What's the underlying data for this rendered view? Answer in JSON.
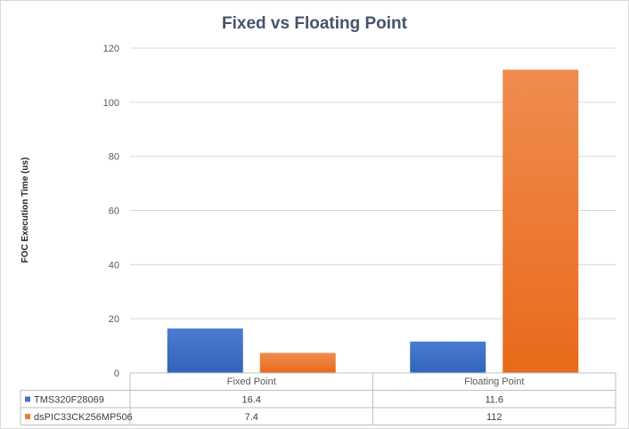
{
  "chart_data": {
    "type": "bar",
    "title": "Fixed vs Floating Point",
    "xlabel": "",
    "ylabel": "FOC Execution Time (us)",
    "categories": [
      "Fixed Point",
      "Floating Point"
    ],
    "series": [
      {
        "name": "TMS320F28069",
        "values": [
          16.4,
          11.6
        ],
        "color": "#4472c4",
        "value_labels": [
          "16.4",
          "11.6"
        ]
      },
      {
        "name": "dsPIC33CK256MP506",
        "values": [
          7.4,
          112
        ],
        "color": "#ed7d31",
        "value_labels": [
          "7.4",
          "112"
        ]
      }
    ],
    "ylim": [
      0,
      120
    ],
    "yticks": [
      0,
      20,
      40,
      60,
      80,
      100,
      120
    ],
    "grid": true,
    "legend": "data-table",
    "data_table": true
  }
}
